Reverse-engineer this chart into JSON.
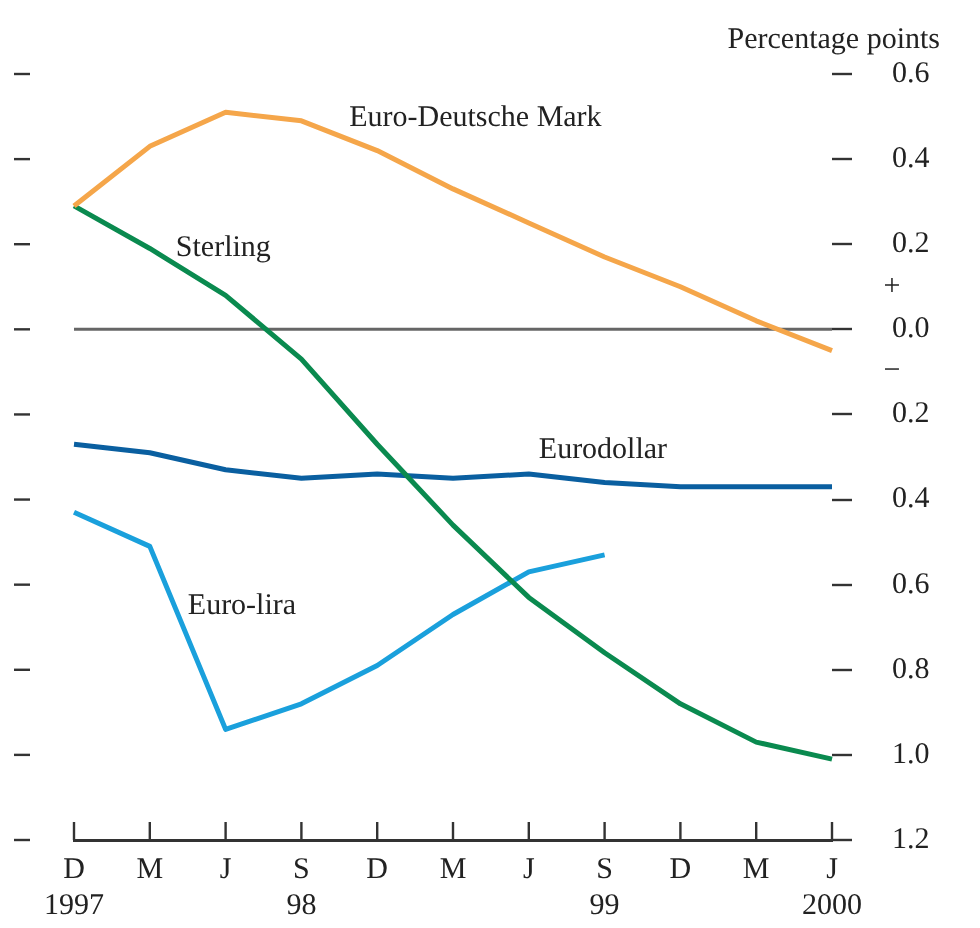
{
  "chart_data": {
    "type": "line",
    "ylabel": "Percentage points",
    "categories": [
      "D\n1997",
      "M",
      "J",
      "S\n98",
      "D",
      "M",
      "J",
      "S\n99",
      "D",
      "M",
      "J\n2000"
    ],
    "series": [
      {
        "name": "Euro-Deutsche Mark",
        "color": "#f5a64a",
        "values": [
          0.29,
          0.43,
          0.51,
          0.49,
          0.42,
          0.33,
          0.25,
          0.17,
          0.1,
          0.02,
          -0.05
        ]
      },
      {
        "name": "Sterling",
        "color": "#0a8a4f",
        "values": [
          0.29,
          0.19,
          0.08,
          -0.07,
          -0.27,
          -0.46,
          -0.63,
          -0.76,
          -0.88,
          -0.97,
          -1.01
        ]
      },
      {
        "name": "Eurodollar",
        "color": "#0a5fa0",
        "values": [
          -0.27,
          -0.29,
          -0.33,
          -0.35,
          -0.34,
          -0.35,
          -0.34,
          -0.36,
          -0.37,
          -0.37,
          -0.37
        ]
      },
      {
        "name": "Euro-lira",
        "color": "#1aa0dc",
        "values": [
          -0.43,
          -0.51,
          -0.94,
          -0.88,
          -0.79,
          -0.67,
          -0.57,
          -0.53,
          null,
          null,
          null
        ]
      }
    ],
    "ylim": [
      -1.2,
      0.6
    ],
    "yticks": [
      0.6,
      0.4,
      0.2,
      {
        "value": 0,
        "label": "0.0"
      },
      {
        "value": -0.2,
        "label": "0.2"
      },
      {
        "value": -0.4,
        "label": "0.4"
      },
      {
        "value": -0.6,
        "label": "0.6"
      },
      {
        "value": -0.8,
        "label": "0.8"
      },
      {
        "value": -1.0,
        "label": "1.0"
      },
      {
        "value": -1.2,
        "label": "1.2"
      }
    ],
    "ref_lines": [
      {
        "axis": "y",
        "value": 0,
        "color": "#666666"
      }
    ],
    "annotations": [
      "+",
      "−"
    ],
    "grid": false,
    "legend": false,
    "marker": "none",
    "line_style": "solid"
  }
}
